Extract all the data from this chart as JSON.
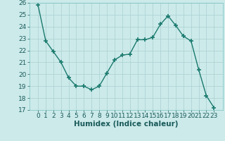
{
  "x": [
    0,
    1,
    2,
    3,
    4,
    5,
    6,
    7,
    8,
    9,
    10,
    11,
    12,
    13,
    14,
    15,
    16,
    17,
    18,
    19,
    20,
    21,
    22,
    23
  ],
  "y": [
    25.8,
    22.8,
    21.9,
    21.0,
    19.7,
    19.0,
    19.0,
    18.7,
    19.0,
    20.1,
    21.2,
    21.6,
    21.7,
    22.9,
    22.9,
    23.1,
    24.2,
    24.9,
    24.1,
    23.2,
    22.8,
    20.4,
    18.2,
    17.2
  ],
  "line_color": "#1a7a6e",
  "bg_color": "#cceaea",
  "grid_color": "#aacfcf",
  "xlabel": "Humidex (Indice chaleur)",
  "ylim": [
    17,
    26
  ],
  "yticks": [
    17,
    18,
    19,
    20,
    21,
    22,
    23,
    24,
    25,
    26
  ],
  "xticks": [
    0,
    1,
    2,
    3,
    4,
    5,
    6,
    7,
    8,
    9,
    10,
    11,
    12,
    13,
    14,
    15,
    16,
    17,
    18,
    19,
    20,
    21,
    22,
    23
  ],
  "marker": "+",
  "markersize": 4,
  "linewidth": 1.0,
  "tick_labelsize": 6.5,
  "xlabel_fontsize": 7.5
}
